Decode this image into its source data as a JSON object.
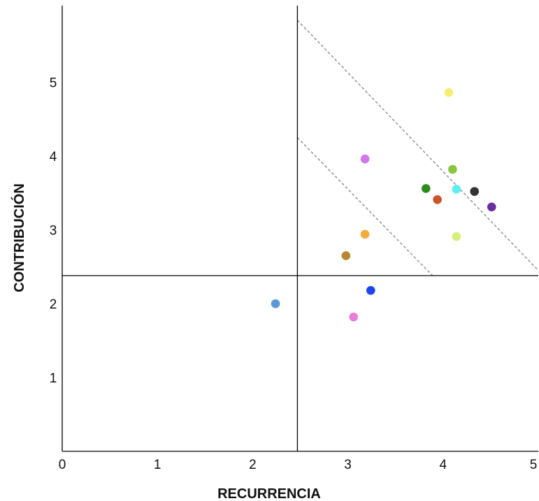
{
  "chart_data": {
    "type": "scatter",
    "xlabel": "RECURRENCIA",
    "ylabel": "CONTRIBUCIÓN",
    "xlim": [
      0,
      5
    ],
    "ylim": [
      0,
      5.9
    ],
    "x_ticks": [
      "0",
      "1",
      "2",
      "3",
      "4",
      "5"
    ],
    "y_ticks": [
      "1",
      "2",
      "3",
      "4",
      "5"
    ],
    "grid": false,
    "quadrant_lines": {
      "x": 2.47,
      "y": 2.38
    },
    "diagonal_guides": [
      {
        "from": [
          2.47,
          5.84
        ],
        "to": [
          5.0,
          2.45
        ]
      },
      {
        "from": [
          2.47,
          4.25
        ],
        "to": [
          3.89,
          2.38
        ]
      }
    ],
    "points": [
      {
        "x": 4.06,
        "y": 4.86,
        "color": "#f5ee6e"
      },
      {
        "x": 3.18,
        "y": 3.96,
        "color": "#cf77ec"
      },
      {
        "x": 4.1,
        "y": 3.82,
        "color": "#8ac43f"
      },
      {
        "x": 3.82,
        "y": 3.56,
        "color": "#2f8a1e"
      },
      {
        "x": 4.14,
        "y": 3.55,
        "color": "#5ff0f4"
      },
      {
        "x": 4.33,
        "y": 3.52,
        "color": "#333333"
      },
      {
        "x": 3.94,
        "y": 3.41,
        "color": "#c8562a"
      },
      {
        "x": 4.51,
        "y": 3.31,
        "color": "#6a2ea0"
      },
      {
        "x": 3.18,
        "y": 2.94,
        "color": "#f2ac3c"
      },
      {
        "x": 4.14,
        "y": 2.91,
        "color": "#d7ee7a"
      },
      {
        "x": 2.98,
        "y": 2.65,
        "color": "#b7892e"
      },
      {
        "x": 3.24,
        "y": 2.18,
        "color": "#1f45ef"
      },
      {
        "x": 2.24,
        "y": 2.0,
        "color": "#5b97d5"
      },
      {
        "x": 3.06,
        "y": 1.82,
        "color": "#e57fd8"
      }
    ],
    "colors": {
      "axis": "#000000",
      "quadrant_line": "#000000",
      "guide": "#8c8c8c"
    }
  }
}
